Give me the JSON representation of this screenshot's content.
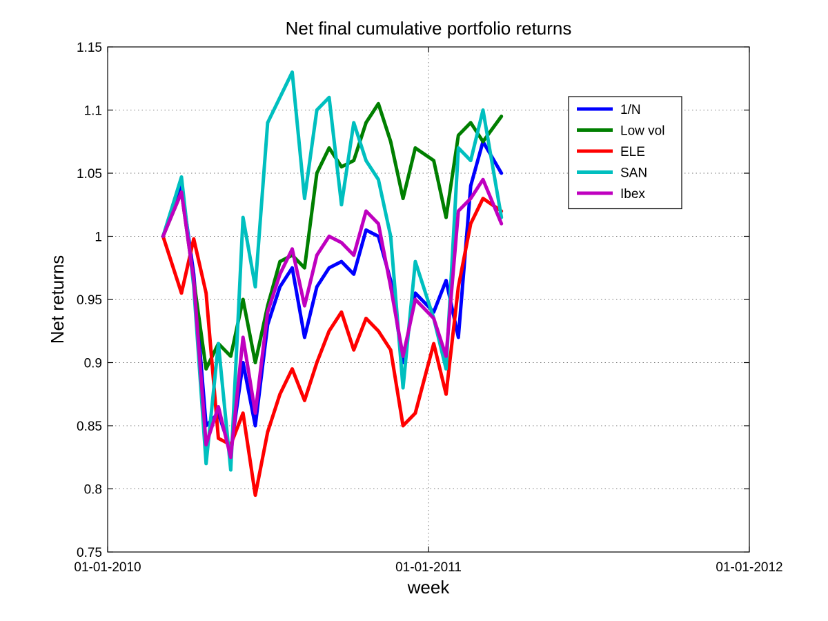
{
  "chart_data": {
    "type": "line",
    "title": "Net final cumulative portfolio returns",
    "xlabel": "week",
    "ylabel": "Net returns",
    "xlim": [
      "2010-01-01",
      "2012-01-01"
    ],
    "ylim": [
      0.75,
      1.15
    ],
    "x_tick_labels": [
      "01-01-2010",
      "01-01-2011",
      "01-01-2012"
    ],
    "y_tick_labels": [
      "0.75",
      "0.8",
      "0.85",
      "0.9",
      "0.95",
      "1",
      "1.05",
      "1.1",
      "1.15"
    ],
    "grid": true,
    "legend_position": "top-right",
    "series": [
      {
        "name": "1/N",
        "color": "#0000ff",
        "x": [
          "2010-03-05",
          "2010-03-26",
          "2010-04-09",
          "2010-04-23",
          "2010-05-07",
          "2010-05-21",
          "2010-06-04",
          "2010-06-18",
          "2010-07-02",
          "2010-07-16",
          "2010-07-30",
          "2010-08-13",
          "2010-08-27",
          "2010-09-10",
          "2010-09-24",
          "2010-10-08",
          "2010-10-22",
          "2010-11-05",
          "2010-11-19",
          "2010-12-03",
          "2010-12-17",
          "2011-01-07",
          "2011-01-21",
          "2011-02-04",
          "2011-02-18",
          "2011-03-04",
          "2011-03-25"
        ],
        "values": [
          1.0,
          1.04,
          0.97,
          0.85,
          0.86,
          0.83,
          0.9,
          0.85,
          0.93,
          0.96,
          0.975,
          0.92,
          0.96,
          0.975,
          0.98,
          0.97,
          1.005,
          1.0,
          0.965,
          0.9,
          0.955,
          0.94,
          0.965,
          0.92,
          1.04,
          1.075,
          1.05
        ]
      },
      {
        "name": "Low vol",
        "color": "#007f00",
        "x": [
          "2010-03-05",
          "2010-03-26",
          "2010-04-09",
          "2010-04-23",
          "2010-05-07",
          "2010-05-21",
          "2010-06-04",
          "2010-06-18",
          "2010-07-02",
          "2010-07-16",
          "2010-07-30",
          "2010-08-13",
          "2010-08-27",
          "2010-09-10",
          "2010-09-24",
          "2010-10-08",
          "2010-10-22",
          "2010-11-05",
          "2010-11-19",
          "2010-12-03",
          "2010-12-17",
          "2011-01-07",
          "2011-01-21",
          "2011-02-04",
          "2011-02-18",
          "2011-03-04",
          "2011-03-25"
        ],
        "values": [
          1.0,
          1.035,
          0.965,
          0.895,
          0.915,
          0.905,
          0.95,
          0.9,
          0.945,
          0.98,
          0.985,
          0.975,
          1.05,
          1.07,
          1.055,
          1.06,
          1.09,
          1.105,
          1.075,
          1.03,
          1.07,
          1.06,
          1.015,
          1.08,
          1.09,
          1.075,
          1.095
        ]
      },
      {
        "name": "ELE",
        "color": "#ff0000",
        "x": [
          "2010-03-05",
          "2010-03-26",
          "2010-04-09",
          "2010-04-23",
          "2010-05-07",
          "2010-05-21",
          "2010-06-04",
          "2010-06-18",
          "2010-07-02",
          "2010-07-16",
          "2010-07-30",
          "2010-08-13",
          "2010-08-27",
          "2010-09-10",
          "2010-09-24",
          "2010-10-08",
          "2010-10-22",
          "2010-11-05",
          "2010-11-19",
          "2010-12-03",
          "2010-12-17",
          "2011-01-07",
          "2011-01-21",
          "2011-02-04",
          "2011-02-18",
          "2011-03-04",
          "2011-03-25"
        ],
        "values": [
          1.0,
          0.955,
          0.998,
          0.955,
          0.84,
          0.835,
          0.86,
          0.795,
          0.845,
          0.875,
          0.895,
          0.87,
          0.9,
          0.925,
          0.94,
          0.91,
          0.935,
          0.925,
          0.91,
          0.85,
          0.86,
          0.915,
          0.875,
          0.96,
          1.01,
          1.03,
          1.02
        ]
      },
      {
        "name": "SAN",
        "color": "#00bfbf",
        "x": [
          "2010-03-05",
          "2010-03-26",
          "2010-04-09",
          "2010-04-23",
          "2010-05-07",
          "2010-05-21",
          "2010-06-04",
          "2010-06-18",
          "2010-07-02",
          "2010-07-16",
          "2010-07-30",
          "2010-08-13",
          "2010-08-27",
          "2010-09-10",
          "2010-09-24",
          "2010-10-08",
          "2010-10-22",
          "2010-11-05",
          "2010-11-19",
          "2010-12-03",
          "2010-12-17",
          "2011-01-07",
          "2011-01-21",
          "2011-02-04",
          "2011-02-18",
          "2011-03-04",
          "2011-03-25"
        ],
        "values": [
          1.0,
          1.047,
          0.96,
          0.82,
          0.915,
          0.815,
          1.015,
          0.96,
          1.09,
          1.11,
          1.13,
          1.03,
          1.1,
          1.11,
          1.025,
          1.09,
          1.06,
          1.045,
          1.0,
          0.88,
          0.98,
          0.935,
          0.895,
          1.07,
          1.06,
          1.1,
          1.015
        ]
      },
      {
        "name": "Ibex",
        "color": "#bf00bf",
        "x": [
          "2010-03-05",
          "2010-03-26",
          "2010-04-09",
          "2010-04-23",
          "2010-05-07",
          "2010-05-21",
          "2010-06-04",
          "2010-06-18",
          "2010-07-02",
          "2010-07-16",
          "2010-07-30",
          "2010-08-13",
          "2010-08-27",
          "2010-09-10",
          "2010-09-24",
          "2010-10-08",
          "2010-10-22",
          "2010-11-05",
          "2010-11-19",
          "2010-12-03",
          "2010-12-17",
          "2011-01-07",
          "2011-01-21",
          "2011-02-04",
          "2011-02-18",
          "2011-03-04",
          "2011-03-25"
        ],
        "values": [
          1.0,
          1.035,
          0.965,
          0.835,
          0.865,
          0.825,
          0.92,
          0.86,
          0.94,
          0.97,
          0.99,
          0.945,
          0.985,
          1.0,
          0.995,
          0.985,
          1.02,
          1.01,
          0.96,
          0.905,
          0.95,
          0.935,
          0.905,
          1.02,
          1.03,
          1.045,
          1.01
        ]
      }
    ]
  }
}
